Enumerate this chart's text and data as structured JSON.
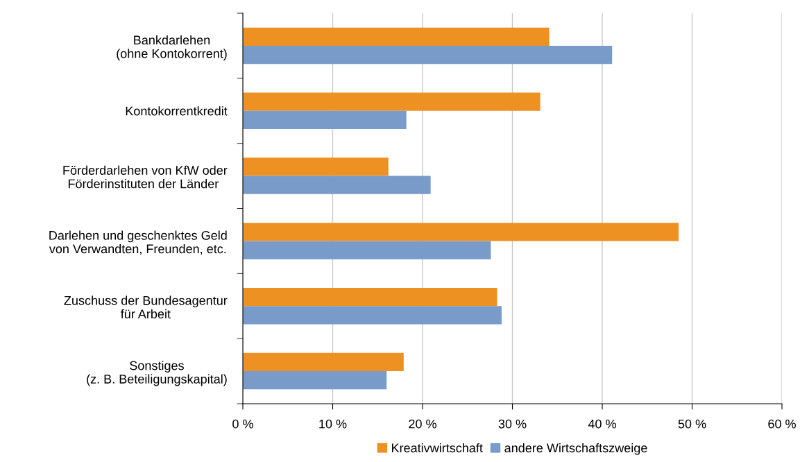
{
  "chart_data": {
    "type": "bar",
    "orientation": "horizontal",
    "categories": [
      "Bankdarlehen\n(ohne Kontokorrent)",
      "Kontokorrentkredit",
      "Förderdarlehen von KfW oder\nFörderinstituten der Länder ",
      "Darlehen und geschenktes Geld\nvon Verwandten, Freunden, etc.",
      "Zuschuss der Bundesagentur\nfür Arbeit",
      "Sonstiges\n(z. B. Beteiligungskapital)"
    ],
    "series": [
      {
        "name": "Kreativwirtschaft",
        "color": "#ee9123",
        "values": [
          34.1,
          33.1,
          16.2,
          48.5,
          28.3,
          17.9
        ]
      },
      {
        "name": "andere Wirtschaftszweige",
        "color": "#799bc9",
        "values": [
          41.1,
          18.2,
          20.9,
          27.6,
          28.8,
          16.0
        ]
      }
    ],
    "xlim": [
      0,
      60
    ],
    "xticks": [
      {
        "value": 0,
        "label": "0 %"
      },
      {
        "value": 10,
        "label": "10 %"
      },
      {
        "value": 20,
        "label": "20 %"
      },
      {
        "value": 30,
        "label": "30 %"
      },
      {
        "value": 40,
        "label": "40 %"
      },
      {
        "value": 50,
        "label": "50 %"
      },
      {
        "value": 60,
        "label": "60 %"
      }
    ],
    "grid": "x",
    "legend": "bottom"
  }
}
